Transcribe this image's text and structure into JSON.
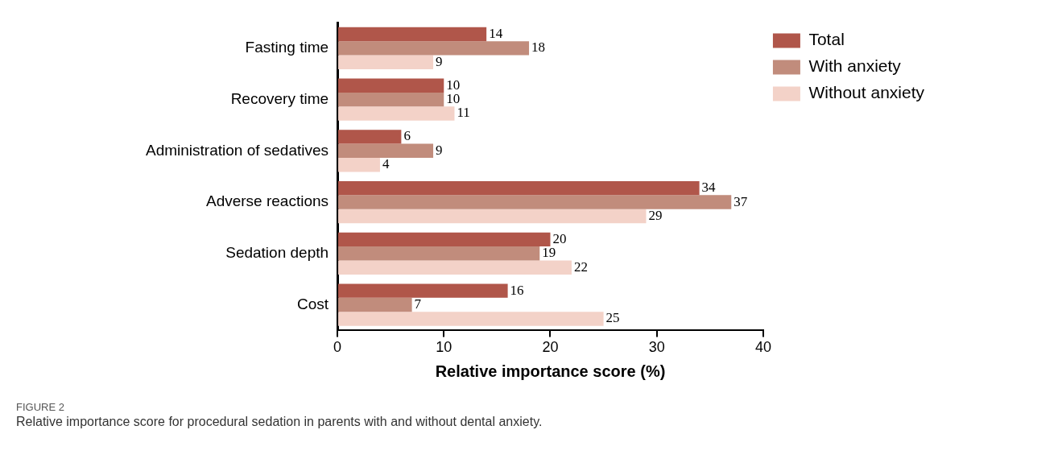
{
  "chart_data": {
    "type": "bar",
    "orientation": "horizontal",
    "categories": [
      "Fasting time",
      "Recovery time",
      "Administration of sedatives",
      "Adverse reactions",
      "Sedation depth",
      "Cost"
    ],
    "series": [
      {
        "name": "Total",
        "color": "#b0564a",
        "values": [
          14,
          10,
          6,
          34,
          20,
          16
        ]
      },
      {
        "name": "With anxiety",
        "color": "#c18c7c",
        "values": [
          18,
          10,
          9,
          37,
          19,
          7
        ]
      },
      {
        "name": "Without anxiety",
        "color": "#f3d2c8",
        "values": [
          9,
          11,
          4,
          29,
          22,
          25
        ]
      }
    ],
    "xlabel": "Relative importance score (%)",
    "xlim": [
      0,
      40
    ],
    "xticks": [
      0,
      10,
      20,
      30,
      40
    ],
    "grid": false,
    "legend": "top right",
    "data_labels": true,
    "annotations": [
      "FIGURE 2",
      "Relative importance score for procedural sedation in parents with and without dental anxiety."
    ]
  }
}
